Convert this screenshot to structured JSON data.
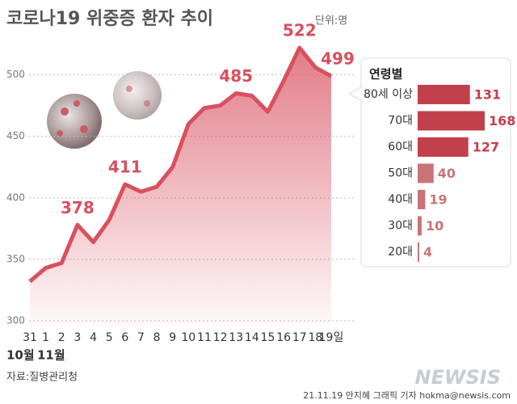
{
  "chart_data": [
    {
      "type": "area-line",
      "title": "코로나19 위중증 환자 추이",
      "unit": "단위:명",
      "categories": [
        "31",
        "1",
        "2",
        "3",
        "4",
        "5",
        "6",
        "7",
        "8",
        "9",
        "10",
        "11",
        "12",
        "13",
        "14",
        "15",
        "16",
        "17",
        "18",
        "19일"
      ],
      "x_group_labels": [
        "10월",
        "11월"
      ],
      "values": [
        332,
        343,
        347,
        378,
        364,
        382,
        411,
        405,
        409,
        425,
        460,
        473,
        475,
        485,
        483,
        470,
        495,
        522,
        506,
        499
      ],
      "value_labels": [
        null,
        null,
        null,
        "378",
        null,
        null,
        "411",
        null,
        null,
        null,
        null,
        null,
        null,
        "485",
        null,
        null,
        null,
        "522",
        null,
        "499"
      ],
      "color": "#d9505f",
      "ylim": [
        300,
        530
      ],
      "yticks": [
        300,
        350,
        400,
        450,
        500
      ],
      "grid": true
    },
    {
      "type": "hbar",
      "title": "연령별",
      "categories": [
        "80세 이상",
        "70대",
        "60대",
        "50대",
        "40대",
        "30대",
        "20대"
      ],
      "values": [
        131,
        168,
        127,
        40,
        19,
        10,
        4
      ],
      "colors": [
        "#c2404b",
        "#c2404b",
        "#c2404b",
        "#c97476",
        "#c97476",
        "#c97476",
        "#c97476"
      ]
    }
  ],
  "source": "자료:질병관리청",
  "credit": "21.11.19 안지혜 그래픽 기자 hokma@newsis.com",
  "watermark": "NEWSIS"
}
